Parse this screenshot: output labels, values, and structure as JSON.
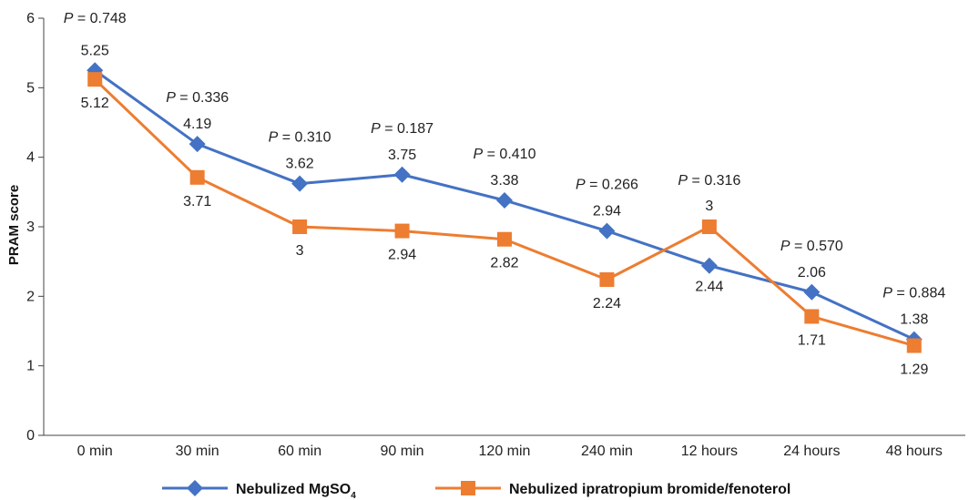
{
  "chart_data": {
    "type": "line",
    "title": "",
    "xlabel": "",
    "ylabel": "PRAM score",
    "categories": [
      "0 min",
      "30 min",
      "60 min",
      "90 min",
      "120 min",
      "240 min",
      "12 hours",
      "24 hours",
      "48 hours"
    ],
    "ylim": [
      0,
      6
    ],
    "yticks": [
      "0",
      "1",
      "2",
      "3",
      "4",
      "5",
      "6"
    ],
    "grid": false,
    "legend_position": "bottom",
    "series": [
      {
        "name": "Nebulized MgSO4",
        "name_base": "Nebulized MgSO",
        "name_sub": "4",
        "color": "#4472C4",
        "marker": "diamond",
        "values": [
          5.25,
          4.19,
          3.62,
          3.75,
          3.38,
          2.94,
          2.44,
          2.06,
          1.38
        ],
        "labels": [
          "5.25",
          "4.19",
          "3.62",
          "3.75",
          "3.38",
          "2.94",
          "2.44",
          "2.06",
          "1.38"
        ]
      },
      {
        "name": "Nebulized ipratropium bromide/fenoterol",
        "color": "#ED7D31",
        "marker": "square",
        "values": [
          5.12,
          3.71,
          3,
          2.94,
          2.82,
          2.24,
          3,
          1.71,
          1.29
        ],
        "labels": [
          "5.12",
          "3.71",
          "3",
          "2.94",
          "2.82",
          "2.24",
          "3",
          "1.71",
          "1.29"
        ]
      }
    ],
    "p_values": [
      "0.748",
      "0.336",
      "0.310",
      "0.187",
      "0.410",
      "0.266",
      "0.316",
      "0.570",
      "0.884"
    ],
    "p_prefix": "P",
    "p_eq": " = "
  }
}
